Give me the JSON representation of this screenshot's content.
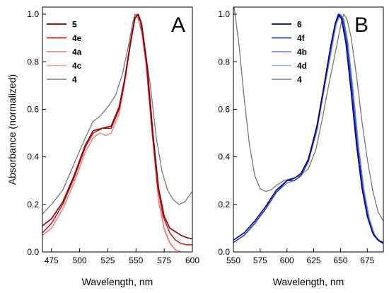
{
  "chart_data": [
    {
      "type": "line",
      "panel_label": "A",
      "xlabel": "Wavelength, nm",
      "ylabel": "Absorbance (normalized)",
      "xlim": [
        467,
        600
      ],
      "ylim": [
        0.0,
        1.03
      ],
      "xticks": [
        475,
        500,
        525,
        550,
        575,
        600
      ],
      "yticks": [
        0.0,
        0.2,
        0.4,
        0.6,
        0.8,
        1.0
      ],
      "grid": false,
      "legend_position": "top-left",
      "series": [
        {
          "name": "5",
          "color": "#8b0000",
          "width": 1.6,
          "points": [
            [
              467,
              0.11
            ],
            [
              475,
              0.14
            ],
            [
              485,
              0.21
            ],
            [
              495,
              0.32
            ],
            [
              505,
              0.45
            ],
            [
              512,
              0.51
            ],
            [
              520,
              0.52
            ],
            [
              528,
              0.53
            ],
            [
              535,
              0.61
            ],
            [
              540,
              0.73
            ],
            [
              545,
              0.88
            ],
            [
              549,
              0.985
            ],
            [
              552,
              1.0
            ],
            [
              555,
              0.96
            ],
            [
              560,
              0.78
            ],
            [
              565,
              0.5
            ],
            [
              570,
              0.27
            ],
            [
              575,
              0.15
            ],
            [
              580,
              0.1
            ],
            [
              585,
              0.085
            ],
            [
              590,
              0.07
            ],
            [
              595,
              0.06
            ],
            [
              600,
              0.055
            ]
          ]
        },
        {
          "name": "4e",
          "color": "#d01010",
          "width": 1.5,
          "points": [
            [
              467,
              0.08
            ],
            [
              475,
              0.12
            ],
            [
              485,
              0.2
            ],
            [
              495,
              0.31
            ],
            [
              505,
              0.44
            ],
            [
              512,
              0.5
            ],
            [
              520,
              0.52
            ],
            [
              528,
              0.52
            ],
            [
              535,
              0.6
            ],
            [
              540,
              0.72
            ],
            [
              545,
              0.87
            ],
            [
              549,
              0.98
            ],
            [
              551,
              1.0
            ],
            [
              554,
              0.97
            ],
            [
              559,
              0.8
            ],
            [
              564,
              0.52
            ],
            [
              569,
              0.28
            ],
            [
              574,
              0.15
            ],
            [
              580,
              0.08
            ],
            [
              585,
              0.05
            ],
            [
              590,
              0.035
            ],
            [
              595,
              0.03
            ],
            [
              600,
              0.03
            ]
          ]
        },
        {
          "name": "4a",
          "color": "#f07070",
          "width": 1.2,
          "points": [
            [
              467,
              0.07
            ],
            [
              475,
              0.1
            ],
            [
              485,
              0.18
            ],
            [
              495,
              0.29
            ],
            [
              505,
              0.42
            ],
            [
              512,
              0.48
            ],
            [
              518,
              0.5
            ],
            [
              523,
              0.49
            ],
            [
              528,
              0.5
            ],
            [
              535,
              0.58
            ],
            [
              540,
              0.71
            ],
            [
              545,
              0.87
            ],
            [
              549,
              0.975
            ],
            [
              551,
              1.0
            ],
            [
              554,
              0.97
            ],
            [
              559,
              0.79
            ],
            [
              565,
              0.47
            ],
            [
              570,
              0.22
            ],
            [
              575,
              0.1
            ],
            [
              580,
              0.04
            ],
            [
              585,
              0.01
            ],
            [
              590,
              0.0
            ]
          ]
        },
        {
          "name": "4c",
          "color": "#f5a0a0",
          "width": 1.2,
          "points": [
            [
              467,
              0.07
            ],
            [
              475,
              0.1
            ],
            [
              485,
              0.18
            ],
            [
              495,
              0.29
            ],
            [
              505,
              0.42
            ],
            [
              512,
              0.48
            ],
            [
              518,
              0.5
            ],
            [
              523,
              0.49
            ],
            [
              528,
              0.5
            ],
            [
              535,
              0.58
            ],
            [
              540,
              0.72
            ],
            [
              545,
              0.88
            ],
            [
              549,
              0.98
            ],
            [
              551,
              1.0
            ],
            [
              554,
              0.965
            ],
            [
              559,
              0.78
            ],
            [
              565,
              0.46
            ],
            [
              570,
              0.21
            ],
            [
              575,
              0.09
            ],
            [
              580,
              0.035
            ],
            [
              586,
              0.0
            ]
          ]
        },
        {
          "name": "4",
          "color": "#777777",
          "width": 1.3,
          "points": [
            [
              467,
              0.16
            ],
            [
              475,
              0.2
            ],
            [
              485,
              0.26
            ],
            [
              495,
              0.37
            ],
            [
              505,
              0.48
            ],
            [
              512,
              0.55
            ],
            [
              518,
              0.57
            ],
            [
              525,
              0.61
            ],
            [
              532,
              0.66
            ],
            [
              538,
              0.75
            ],
            [
              543,
              0.86
            ],
            [
              547,
              0.96
            ],
            [
              549,
              1.0
            ],
            [
              552,
              0.98
            ],
            [
              557,
              0.89
            ],
            [
              563,
              0.69
            ],
            [
              568,
              0.48
            ],
            [
              573,
              0.34
            ],
            [
              578,
              0.26
            ],
            [
              583,
              0.22
            ],
            [
              588,
              0.2
            ],
            [
              593,
              0.21
            ],
            [
              600,
              0.255
            ]
          ]
        }
      ]
    },
    {
      "type": "line",
      "panel_label": "B",
      "xlabel": "Wavelength, nm",
      "ylabel": "",
      "xlim": [
        550,
        690
      ],
      "ylim": [
        0.0,
        1.03
      ],
      "xticks": [
        550,
        575,
        600,
        625,
        650,
        675
      ],
      "yticks": [
        0.0,
        0.2,
        0.4,
        0.6,
        0.8,
        1.0
      ],
      "grid": false,
      "legend_position": "top-right",
      "series": [
        {
          "name": "6",
          "color": "#000080",
          "width": 1.6,
          "points": [
            [
              550,
              0.05
            ],
            [
              560,
              0.08
            ],
            [
              570,
              0.13
            ],
            [
              580,
              0.19
            ],
            [
              590,
              0.26
            ],
            [
              600,
              0.3
            ],
            [
              607,
              0.31
            ],
            [
              613,
              0.33
            ],
            [
              620,
              0.39
            ],
            [
              628,
              0.53
            ],
            [
              635,
              0.71
            ],
            [
              641,
              0.87
            ],
            [
              645,
              0.96
            ],
            [
              648,
              1.0
            ],
            [
              651,
              0.98
            ],
            [
              655,
              0.88
            ],
            [
              660,
              0.67
            ],
            [
              665,
              0.45
            ],
            [
              670,
              0.27
            ],
            [
              675,
              0.15
            ],
            [
              680,
              0.08
            ],
            [
              685,
              0.05
            ],
            [
              690,
              0.04
            ]
          ]
        },
        {
          "name": "4f",
          "color": "#1a3fd0",
          "width": 1.5,
          "points": [
            [
              550,
              0.04
            ],
            [
              560,
              0.07
            ],
            [
              570,
              0.12
            ],
            [
              580,
              0.18
            ],
            [
              590,
              0.25
            ],
            [
              600,
              0.3
            ],
            [
              607,
              0.3
            ],
            [
              613,
              0.32
            ],
            [
              620,
              0.38
            ],
            [
              628,
              0.52
            ],
            [
              635,
              0.7
            ],
            [
              641,
              0.86
            ],
            [
              645,
              0.955
            ],
            [
              649,
              1.0
            ],
            [
              652,
              0.98
            ],
            [
              656,
              0.88
            ],
            [
              661,
              0.67
            ],
            [
              666,
              0.44
            ],
            [
              671,
              0.26
            ],
            [
              676,
              0.14
            ],
            [
              681,
              0.07
            ],
            [
              686,
              0.045
            ],
            [
              690,
              0.035
            ]
          ]
        },
        {
          "name": "4b",
          "color": "#5a7ae8",
          "width": 1.2,
          "points": [
            [
              550,
              0.04
            ],
            [
              560,
              0.07
            ],
            [
              570,
              0.12
            ],
            [
              580,
              0.18
            ],
            [
              590,
              0.25
            ],
            [
              600,
              0.29
            ],
            [
              607,
              0.3
            ],
            [
              613,
              0.32
            ],
            [
              620,
              0.38
            ],
            [
              628,
              0.51
            ],
            [
              635,
              0.69
            ],
            [
              642,
              0.86
            ],
            [
              646,
              0.96
            ],
            [
              650,
              1.0
            ],
            [
              653,
              0.98
            ],
            [
              657,
              0.88
            ],
            [
              662,
              0.67
            ],
            [
              667,
              0.44
            ],
            [
              672,
              0.26
            ],
            [
              677,
              0.14
            ],
            [
              682,
              0.07
            ],
            [
              687,
              0.045
            ],
            [
              690,
              0.04
            ]
          ]
        },
        {
          "name": "4d",
          "color": "#9ab0f5",
          "width": 1.2,
          "points": [
            [
              550,
              0.04
            ],
            [
              560,
              0.07
            ],
            [
              570,
              0.12
            ],
            [
              580,
              0.18
            ],
            [
              590,
              0.25
            ],
            [
              600,
              0.29
            ],
            [
              607,
              0.3
            ],
            [
              613,
              0.32
            ],
            [
              620,
              0.38
            ],
            [
              628,
              0.51
            ],
            [
              635,
              0.69
            ],
            [
              642,
              0.86
            ],
            [
              646,
              0.96
            ],
            [
              650,
              1.0
            ],
            [
              653,
              0.975
            ],
            [
              657,
              0.87
            ],
            [
              662,
              0.66
            ],
            [
              667,
              0.43
            ],
            [
              672,
              0.25
            ],
            [
              677,
              0.13
            ],
            [
              682,
              0.07
            ],
            [
              687,
              0.045
            ],
            [
              690,
              0.04
            ]
          ]
        },
        {
          "name": "4",
          "color": "#777777",
          "width": 1.3,
          "points": [
            [
              550,
              1.05
            ],
            [
              555,
              0.88
            ],
            [
              560,
              0.65
            ],
            [
              565,
              0.45
            ],
            [
              570,
              0.32
            ],
            [
              575,
              0.265
            ],
            [
              580,
              0.255
            ],
            [
              585,
              0.26
            ],
            [
              590,
              0.28
            ],
            [
              597,
              0.3
            ],
            [
              605,
              0.31
            ],
            [
              612,
              0.32
            ],
            [
              620,
              0.35
            ],
            [
              627,
              0.43
            ],
            [
              633,
              0.56
            ],
            [
              638,
              0.68
            ],
            [
              643,
              0.79
            ],
            [
              647,
              0.88
            ],
            [
              651,
              0.97
            ],
            [
              653,
              1.0
            ],
            [
              656,
              0.98
            ],
            [
              660,
              0.9
            ],
            [
              665,
              0.74
            ],
            [
              670,
              0.55
            ],
            [
              675,
              0.39
            ],
            [
              680,
              0.26
            ],
            [
              685,
              0.17
            ],
            [
              690,
              0.13
            ]
          ]
        }
      ]
    }
  ]
}
